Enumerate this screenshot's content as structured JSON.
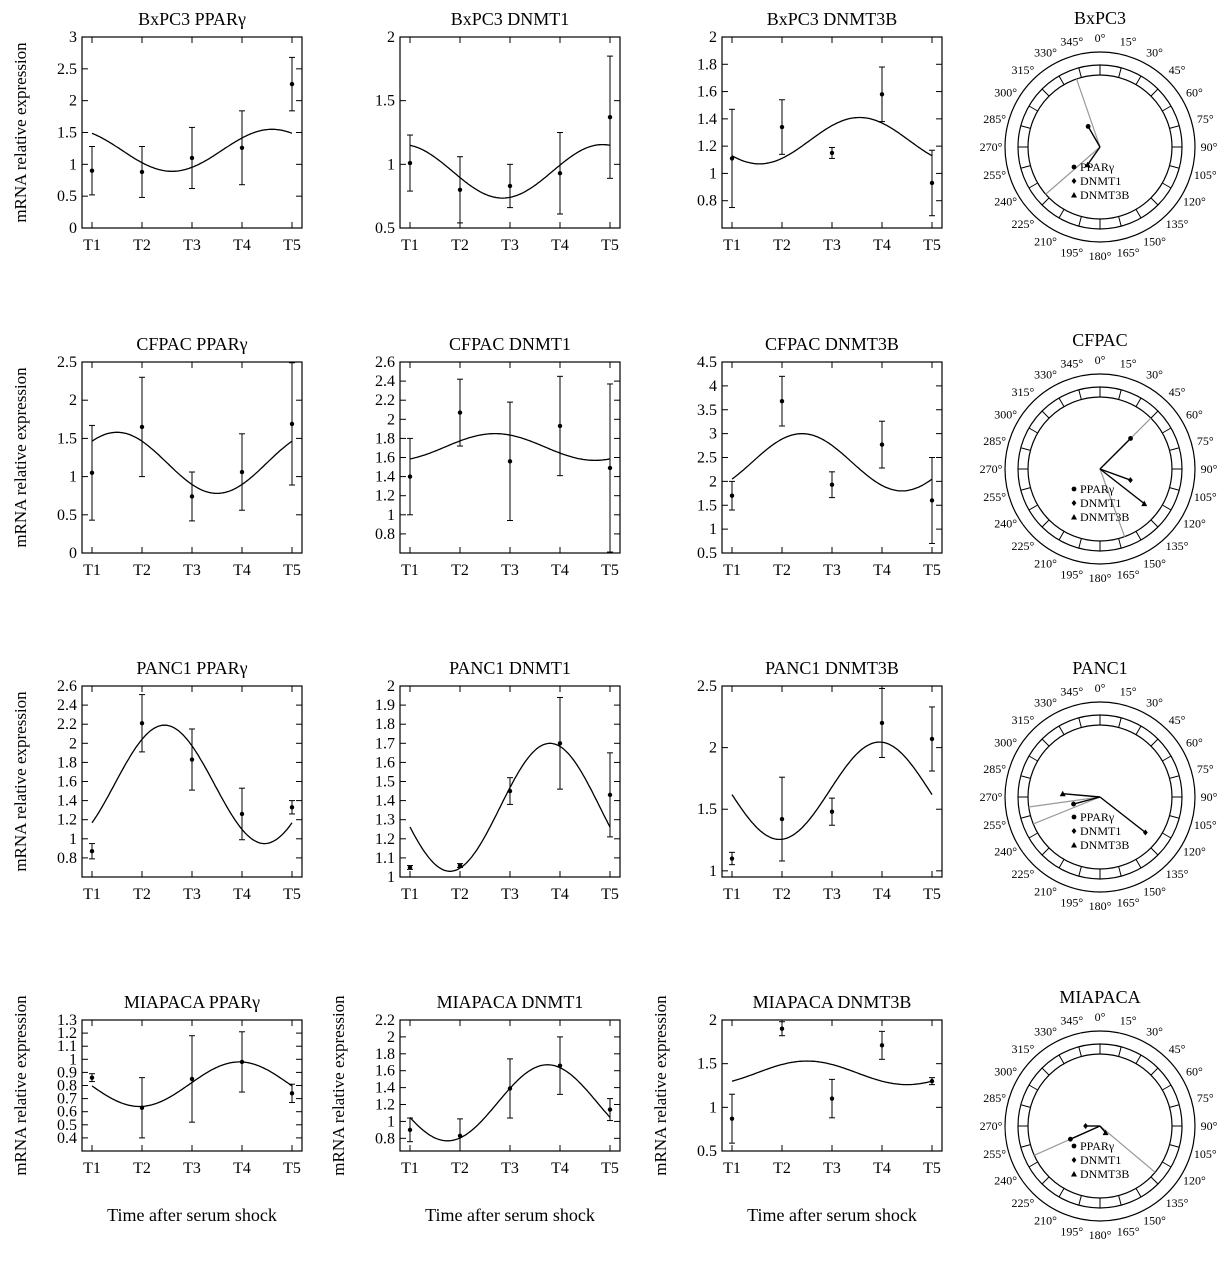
{
  "chart_data": [
    {
      "type": "line",
      "title": "BxPC3 PPARγ",
      "ylabel": "mRNA relative expression",
      "xlabel": "",
      "categories": [
        "T1",
        "T2",
        "T3",
        "T4",
        "T5"
      ],
      "ylim": [
        0,
        3
      ],
      "yticks": [
        "0",
        "0.5",
        "1",
        "1.5",
        "2",
        "2.5",
        "3"
      ],
      "points": [
        0.9,
        0.88,
        1.1,
        1.26,
        2.26
      ],
      "errors": [
        0.38,
        0.4,
        0.48,
        0.58,
        0.42
      ],
      "fit": {
        "mesor": 1.22,
        "amp": 0.33,
        "peak": 4.6
      }
    },
    {
      "type": "line",
      "title": "BxPC3 DNMT1",
      "ylabel": "",
      "xlabel": "",
      "categories": [
        "T1",
        "T2",
        "T3",
        "T4",
        "T5"
      ],
      "ylim": [
        0.5,
        2
      ],
      "yticks": [
        "0.5",
        "1",
        "1.5",
        "2"
      ],
      "points": [
        1.01,
        0.8,
        0.83,
        0.93,
        1.37
      ],
      "errors": [
        0.22,
        0.26,
        0.17,
        0.32,
        0.48
      ],
      "fit": {
        "mesor": 0.945,
        "amp": 0.21,
        "peak": 4.85
      }
    },
    {
      "type": "line",
      "title": "BxPC3 DNMT3B",
      "ylabel": "",
      "xlabel": "",
      "categories": [
        "T1",
        "T2",
        "T3",
        "T4",
        "T5"
      ],
      "ylim": [
        0.6,
        2
      ],
      "yticks": [
        "0.8",
        "1",
        "1.2",
        "1.4",
        "1.6",
        "1.8",
        "2"
      ],
      "points": [
        1.11,
        1.34,
        1.15,
        1.58,
        0.93
      ],
      "errors": [
        0.36,
        0.2,
        0.04,
        0.2,
        0.24
      ],
      "fit": {
        "mesor": 1.24,
        "amp": 0.17,
        "peak": 3.55
      }
    },
    {
      "type": "polar",
      "title": "BxPC3",
      "angles": [
        "0°",
        "15°",
        "30°",
        "45°",
        "60°",
        "75°",
        "90°",
        "105°",
        "120°",
        "135°",
        "150°",
        "165°",
        "180°",
        "195°",
        "210°",
        "225°",
        "240°",
        "255°",
        "270°",
        "285°",
        "300°",
        "315°",
        "330°",
        "345°"
      ],
      "legend": [
        "PPARγ",
        "DNMT1",
        "DNMT3B"
      ],
      "vectors": [
        {
          "series": "PPARγ",
          "marker": "circle",
          "angle": 330,
          "mag": 0.33,
          "line": "#000",
          "ci": [
            341,
            229
          ]
        },
        {
          "series": "DNMT1",
          "marker": "diamond",
          "angle": 344,
          "mag": 0.35,
          "line": "#000",
          "ci": [],
          "hidden": true
        },
        {
          "series": "DNMT3B",
          "marker": "triangle",
          "angle": 215,
          "mag": 0.3,
          "line": "#000",
          "ci": []
        }
      ]
    },
    {
      "type": "line",
      "title": "CFPAC PPARγ",
      "ylabel": "mRNA relative expression",
      "xlabel": "",
      "categories": [
        "T1",
        "T2",
        "T3",
        "T4",
        "T5"
      ],
      "ylim": [
        0,
        2.5
      ],
      "yticks": [
        "0",
        "0.5",
        "1",
        "1.5",
        "2",
        "2.5"
      ],
      "points": [
        1.05,
        1.65,
        0.74,
        1.06,
        1.69
      ],
      "errors": [
        0.62,
        0.65,
        0.32,
        0.5,
        0.8
      ],
      "fit": {
        "mesor": 1.18,
        "amp": 0.4,
        "peak": 1.5
      }
    },
    {
      "type": "line",
      "title": "CFPAC DNMT1",
      "ylabel": "",
      "xlabel": "",
      "categories": [
        "T1",
        "T2",
        "T3",
        "T4",
        "T5"
      ],
      "ylim": [
        0.6,
        2.6
      ],
      "yticks": [
        "0.8",
        "1",
        "1.2",
        "1.4",
        "1.6",
        "1.8",
        "2",
        "2.2",
        "2.4",
        "2.6"
      ],
      "points": [
        1.4,
        2.07,
        1.56,
        1.93,
        1.49
      ],
      "errors": [
        0.4,
        0.35,
        0.62,
        0.52,
        0.88
      ],
      "fit": {
        "mesor": 1.71,
        "amp": 0.14,
        "peak": 2.7
      }
    },
    {
      "type": "line",
      "title": "CFPAC DNMT3B",
      "ylabel": "",
      "xlabel": "",
      "categories": [
        "T1",
        "T2",
        "T3",
        "T4",
        "T5"
      ],
      "ylim": [
        0.5,
        4.5
      ],
      "yticks": [
        "0.5",
        "1",
        "1.5",
        "2",
        "2.5",
        "3",
        "3.5",
        "4",
        "4.5"
      ],
      "points": [
        1.7,
        3.68,
        1.93,
        2.77,
        1.6
      ],
      "errors": [
        0.3,
        0.52,
        0.27,
        0.49,
        0.9
      ],
      "fit": {
        "mesor": 2.4,
        "amp": 0.6,
        "peak": 2.4
      }
    },
    {
      "type": "polar",
      "title": "CFPAC",
      "angles": [
        "0°",
        "15°",
        "30°",
        "45°",
        "60°",
        "75°",
        "90°",
        "105°",
        "120°",
        "135°",
        "150°",
        "165°",
        "180°",
        "195°",
        "210°",
        "225°",
        "240°",
        "255°",
        "270°",
        "285°",
        "300°",
        "315°",
        "330°",
        "345°"
      ],
      "legend": [
        "PPARγ",
        "DNMT1",
        "DNMT3B"
      ],
      "vectors": [
        {
          "series": "PPARγ",
          "marker": "circle",
          "angle": 45,
          "mag": 0.6,
          "line": "#000",
          "ci": [
            45,
            160
          ]
        },
        {
          "series": "DNMT1",
          "marker": "diamond",
          "angle": 110,
          "mag": 0.45,
          "line": "#000",
          "ci": []
        },
        {
          "series": "DNMT3B",
          "marker": "triangle",
          "angle": 128,
          "mag": 0.78,
          "line": "#000",
          "ci": []
        }
      ]
    },
    {
      "type": "line",
      "title": "PANC1 PPARγ",
      "ylabel": "mRNA relative expression",
      "xlabel": "",
      "categories": [
        "T1",
        "T2",
        "T3",
        "T4",
        "T5"
      ],
      "ylim": [
        0.6,
        2.6
      ],
      "yticks": [
        "0.8",
        "1",
        "1.2",
        "1.4",
        "1.6",
        "1.8",
        "2",
        "2.2",
        "2.4",
        "2.6"
      ],
      "points": [
        0.87,
        2.21,
        1.83,
        1.26,
        1.33
      ],
      "errors": [
        0.08,
        0.3,
        0.32,
        0.27,
        0.07
      ],
      "fit": {
        "mesor": 1.57,
        "amp": 0.62,
        "peak": 2.45
      }
    },
    {
      "type": "line",
      "title": "PANC1 DNMT1",
      "ylabel": "",
      "xlabel": "",
      "categories": [
        "T1",
        "T2",
        "T3",
        "T4",
        "T5"
      ],
      "ylim": [
        1,
        2
      ],
      "yticks": [
        "1",
        "1.1",
        "1.2",
        "1.3",
        "1.4",
        "1.5",
        "1.6",
        "1.7",
        "1.8",
        "1.9",
        "2"
      ],
      "points": [
        1.05,
        1.06,
        1.45,
        1.7,
        1.43
      ],
      "errors": [
        0.01,
        0.01,
        0.07,
        0.24,
        0.22
      ],
      "fit": {
        "mesor": 1.365,
        "amp": 0.335,
        "peak": 3.8
      }
    },
    {
      "type": "line",
      "title": "PANC1 DNMT3B",
      "ylabel": "",
      "xlabel": "",
      "categories": [
        "T1",
        "T2",
        "T3",
        "T4",
        "T5"
      ],
      "ylim": [
        0.95,
        2.5
      ],
      "yticks": [
        "1",
        "1.5",
        "2",
        "2.5"
      ],
      "points": [
        1.1,
        1.42,
        1.48,
        2.2,
        2.07
      ],
      "errors": [
        0.05,
        0.34,
        0.11,
        0.28,
        0.26
      ],
      "fit": {
        "mesor": 1.65,
        "amp": 0.395,
        "peak": 3.95
      }
    },
    {
      "type": "polar",
      "title": "PANC1",
      "angles": [
        "0°",
        "15°",
        "30°",
        "45°",
        "60°",
        "75°",
        "90°",
        "105°",
        "120°",
        "135°",
        "150°",
        "165°",
        "180°",
        "195°",
        "210°",
        "225°",
        "240°",
        "255°",
        "270°",
        "285°",
        "300°",
        "315°",
        "330°",
        "345°"
      ],
      "legend": [
        "PPARγ",
        "DNMT1",
        "DNMT3B"
      ],
      "vectors": [
        {
          "series": "PPARγ",
          "marker": "circle",
          "angle": 255,
          "mag": 0.38,
          "line": "#000",
          "ci": [
            262,
            248
          ]
        },
        {
          "series": "DNMT1",
          "marker": "diamond",
          "angle": 128,
          "mag": 0.8,
          "line": "#000",
          "ci": []
        },
        {
          "series": "DNMT3B",
          "marker": "triangle",
          "angle": 275,
          "mag": 0.52,
          "line": "#000",
          "ci": []
        }
      ]
    },
    {
      "type": "line",
      "title": "MIAPACA PPARγ",
      "ylabel": "mRNA relative expression",
      "xlabel": "Time after serum shock",
      "categories": [
        "T1",
        "T2",
        "T3",
        "T4",
        "T5"
      ],
      "ylim": [
        0.3,
        1.3
      ],
      "yticks": [
        "0.4",
        "0.5",
        "0.6",
        "0.7",
        "0.8",
        "0.9",
        "1",
        "1.1",
        "1.2",
        "1.3"
      ],
      "points": [
        0.86,
        0.63,
        0.85,
        0.98,
        0.74
      ],
      "errors": [
        0.03,
        0.23,
        0.33,
        0.23,
        0.07
      ],
      "fit": {
        "mesor": 0.81,
        "amp": 0.17,
        "peak": 3.95
      }
    },
    {
      "type": "line",
      "title": "MIAPACA DNMT1",
      "ylabel": "mRNA relative expression",
      "xlabel": "Time after serum shock",
      "categories": [
        "T1",
        "T2",
        "T3",
        "T4",
        "T5"
      ],
      "ylim": [
        0.65,
        2.2
      ],
      "yticks": [
        "0.8",
        "1",
        "1.2",
        "1.4",
        "1.6",
        "1.8",
        "2",
        "2.2"
      ],
      "points": [
        0.9,
        0.83,
        1.39,
        1.66,
        1.14
      ],
      "errors": [
        0.14,
        0.2,
        0.35,
        0.34,
        0.13
      ],
      "fit": {
        "mesor": 1.22,
        "amp": 0.45,
        "peak": 3.75
      }
    },
    {
      "type": "line",
      "title": "MIAPACA DNMT3B",
      "ylabel": "mRNA relative expression",
      "xlabel": "Time after serum shock",
      "categories": [
        "T1",
        "T2",
        "T3",
        "T4",
        "T5"
      ],
      "ylim": [
        0.5,
        2
      ],
      "yticks": [
        "0.5",
        "1",
        "1.5",
        "2"
      ],
      "points": [
        0.87,
        1.9,
        1.1,
        1.71,
        1.3
      ],
      "errors": [
        0.28,
        0.08,
        0.22,
        0.16,
        0.04
      ],
      "fit": {
        "mesor": 1.395,
        "amp": 0.135,
        "peak": 2.5
      }
    },
    {
      "type": "polar",
      "title": "MIAPACA",
      "angles": [
        "0°",
        "15°",
        "30°",
        "45°",
        "60°",
        "75°",
        "90°",
        "105°",
        "120°",
        "135°",
        "150°",
        "165°",
        "180°",
        "195°",
        "210°",
        "225°",
        "240°",
        "255°",
        "270°",
        "285°",
        "300°",
        "315°",
        "330°",
        "345°"
      ],
      "legend": [
        "PPARγ",
        "DNMT1",
        "DNMT3B"
      ],
      "vectors": [
        {
          "series": "PPARγ",
          "marker": "circle",
          "angle": 246,
          "mag": 0.45,
          "line": "#000",
          "ci": [
            246,
            130
          ]
        },
        {
          "series": "DNMT1",
          "marker": "diamond",
          "angle": 270,
          "mag": 0.2,
          "line": "#000",
          "ci": []
        },
        {
          "series": "DNMT3B",
          "marker": "triangle",
          "angle": 140,
          "mag": 0.12,
          "line": "#000",
          "ci": []
        }
      ]
    }
  ]
}
